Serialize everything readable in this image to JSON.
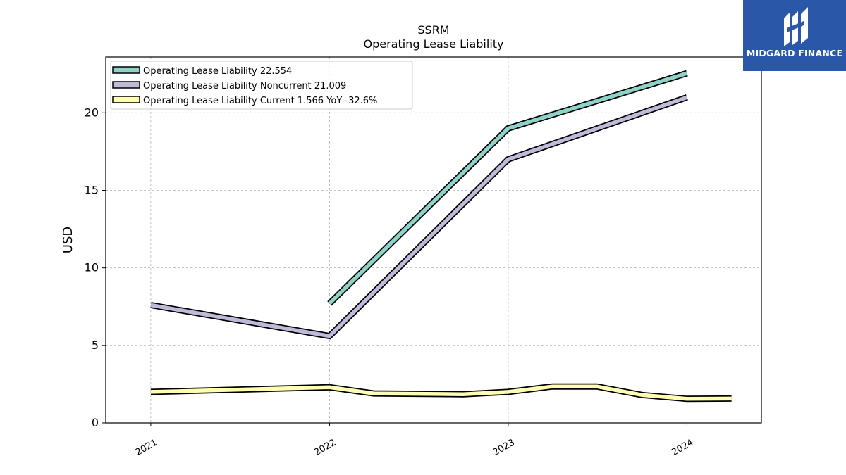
{
  "brand": {
    "name": "MIDGARD FINANCE",
    "bg_color": "#2b57a8"
  },
  "chart_data": {
    "type": "line",
    "title": "SSRM",
    "subtitle": "Operating Lease Liability",
    "xlabel": "",
    "ylabel": "USD",
    "xlim": [
      "2020-10-01",
      "2024-06-01"
    ],
    "ylim": [
      0,
      23.6
    ],
    "yticks": [
      0,
      5,
      10,
      15,
      20
    ],
    "xticks": [
      "2021",
      "2022",
      "2023",
      "2024"
    ],
    "grid": true,
    "legend_position": "top-left",
    "series": [
      {
        "name": "Operating Lease Liability  22.554",
        "color": "#8dd3c7",
        "points": [
          [
            "2022-01-01",
            7.7
          ],
          [
            "2023-01-01",
            19.0
          ],
          [
            "2024-01-01",
            22.55
          ]
        ]
      },
      {
        "name": "Operating Lease Liability Noncurrent  21.009",
        "color": "#bebada",
        "points": [
          [
            "2021-01-01",
            7.6
          ],
          [
            "2022-01-01",
            5.6
          ],
          [
            "2023-01-01",
            17.0
          ],
          [
            "2024-01-01",
            21.0
          ]
        ]
      },
      {
        "name": "Operating Lease Liability Current  1.566 YoY -32.6%",
        "color": "#ffffb3",
        "points": [
          [
            "2021-01-01",
            2.0
          ],
          [
            "2022-01-01",
            2.3
          ],
          [
            "2022-04-01",
            1.9
          ],
          [
            "2022-10-01",
            1.85
          ],
          [
            "2023-01-01",
            2.0
          ],
          [
            "2023-04-01",
            2.35
          ],
          [
            "2023-07-01",
            2.35
          ],
          [
            "2023-10-01",
            1.8
          ],
          [
            "2024-01-01",
            1.55
          ],
          [
            "2024-04-01",
            1.57
          ]
        ]
      }
    ]
  }
}
